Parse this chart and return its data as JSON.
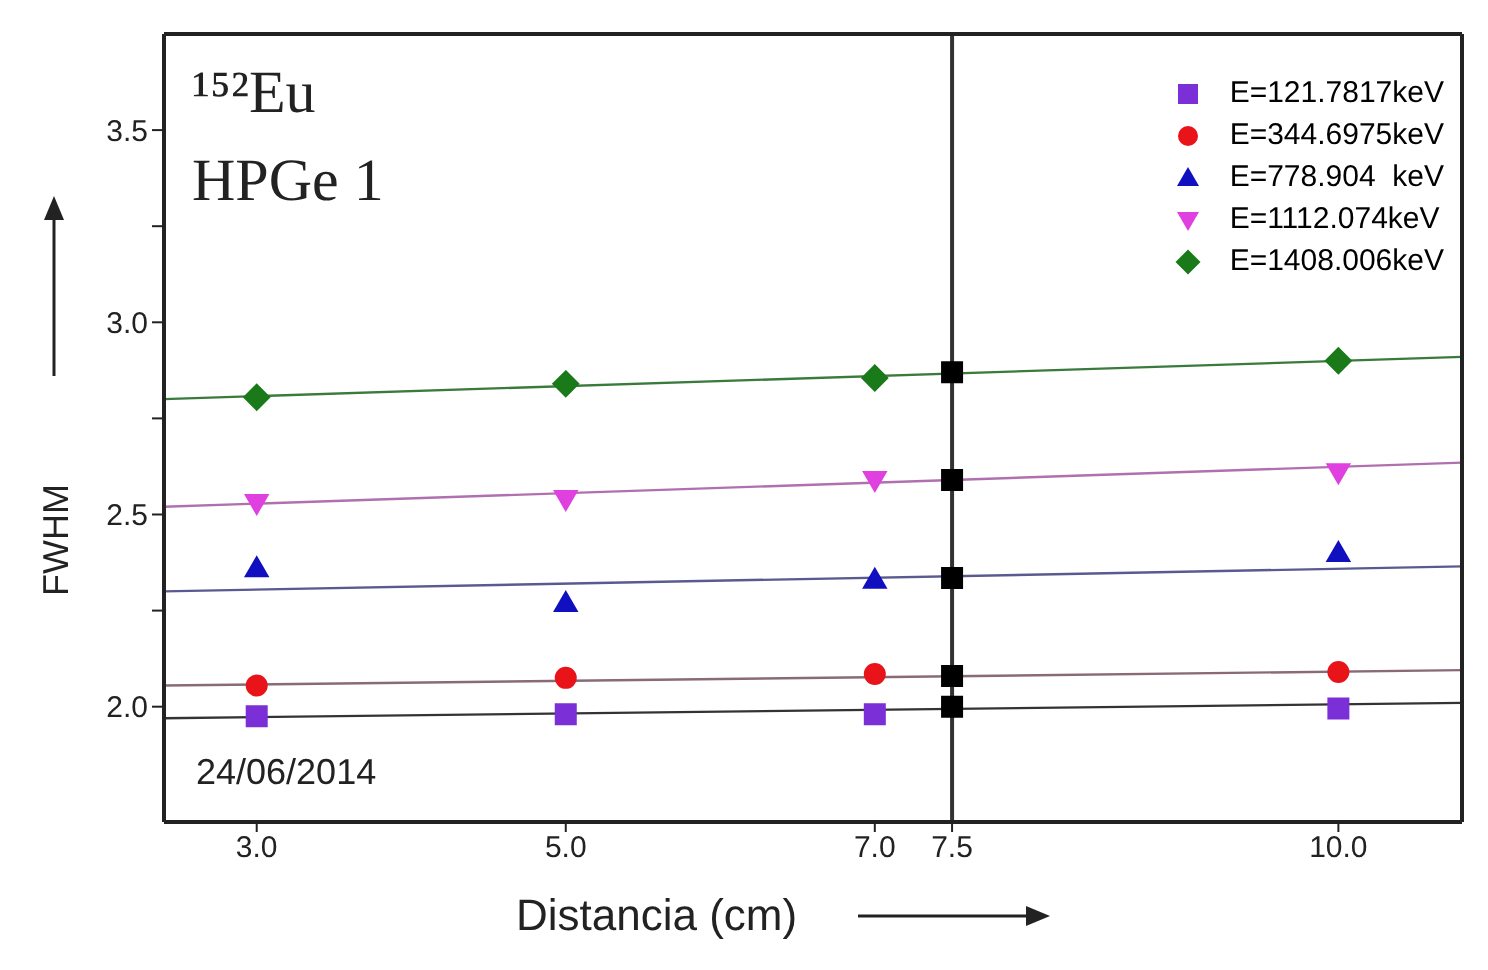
{
  "chart_data": {
    "type": "scatter",
    "xlabel": "Distancia (cm)",
    "ylabel": "FWHM",
    "annotations": [
      "¹⁵²Eu",
      "HPGe 1",
      "24/06/2014"
    ],
    "xlim": [
      2.4,
      10.8
    ],
    "ylim": [
      1.7,
      3.75
    ],
    "xticks": [
      {
        "value": 3,
        "label": "3.0"
      },
      {
        "value": 5,
        "label": "5.0"
      },
      {
        "value": 7,
        "label": "7.0"
      },
      {
        "value": 7.5,
        "label": "7.5"
      },
      {
        "value": 10,
        "label": "10.0"
      }
    ],
    "yticks": [
      {
        "value": 2,
        "label": "2.0"
      },
      {
        "value": 2.25,
        "label": null
      },
      {
        "value": 2.5,
        "label": "2.5"
      },
      {
        "value": 2.75,
        "label": null
      },
      {
        "value": 3,
        "label": "3.0"
      },
      {
        "value": 3.25,
        "label": null
      },
      {
        "value": 3.5,
        "label": "3.5"
      }
    ],
    "legend": "top right",
    "ref_lines": [
      {
        "axis": "x",
        "value": 7.5,
        "color": "#333333",
        "line_style": "solid"
      }
    ],
    "series": [
      {
        "type": "line",
        "x": [
          2.4,
          10.8
        ],
        "values": [
          1.97,
          2.01
        ],
        "color": "#333333",
        "marker": "none"
      },
      {
        "type": "line",
        "x": [
          2.4,
          10.8
        ],
        "values": [
          2.055,
          2.095
        ],
        "color": "#8a6a78",
        "marker": "none"
      },
      {
        "type": "line",
        "x": [
          2.4,
          10.8
        ],
        "values": [
          2.3,
          2.365
        ],
        "color": "#5a5a90",
        "marker": "none"
      },
      {
        "type": "line",
        "x": [
          2.4,
          10.8
        ],
        "values": [
          2.52,
          2.635
        ],
        "color": "#b070b0",
        "marker": "none"
      },
      {
        "type": "line",
        "x": [
          2.4,
          10.8
        ],
        "values": [
          2.8,
          2.91
        ],
        "color": "#3a7a3a",
        "marker": "none"
      },
      {
        "name": "E=121.7817keV",
        "x": [
          3,
          5,
          7,
          10
        ],
        "values": [
          1.975,
          1.98,
          1.98,
          1.995
        ],
        "color": "#7b2fd6",
        "marker": "square"
      },
      {
        "name": "E=344.6975keV",
        "x": [
          3,
          5,
          7,
          10
        ],
        "values": [
          2.055,
          2.075,
          2.085,
          2.09
        ],
        "color": "#e8141a",
        "marker": "circle"
      },
      {
        "name": "E=778.904  keV",
        "x": [
          3,
          5,
          7,
          10
        ],
        "values": [
          2.36,
          2.27,
          2.33,
          2.4
        ],
        "color": "#1010c0",
        "marker": "triangle"
      },
      {
        "name": "E=1112.074keV",
        "x": [
          3,
          5,
          7,
          10
        ],
        "values": [
          2.53,
          2.54,
          2.59,
          2.61
        ],
        "color": "#e040e0",
        "marker": "triangle-down"
      },
      {
        "name": "E=1408.006keV",
        "x": [
          3,
          5,
          7,
          10
        ],
        "values": [
          2.805,
          2.84,
          2.855,
          2.9
        ],
        "color": "#1a7a1a",
        "marker": "diamond"
      },
      {
        "x": [
          7.5,
          7.5,
          7.5,
          7.5,
          7.5
        ],
        "values": [
          2.0,
          2.08,
          2.335,
          2.59,
          2.87
        ],
        "color": "#000000",
        "marker": "square"
      }
    ]
  }
}
